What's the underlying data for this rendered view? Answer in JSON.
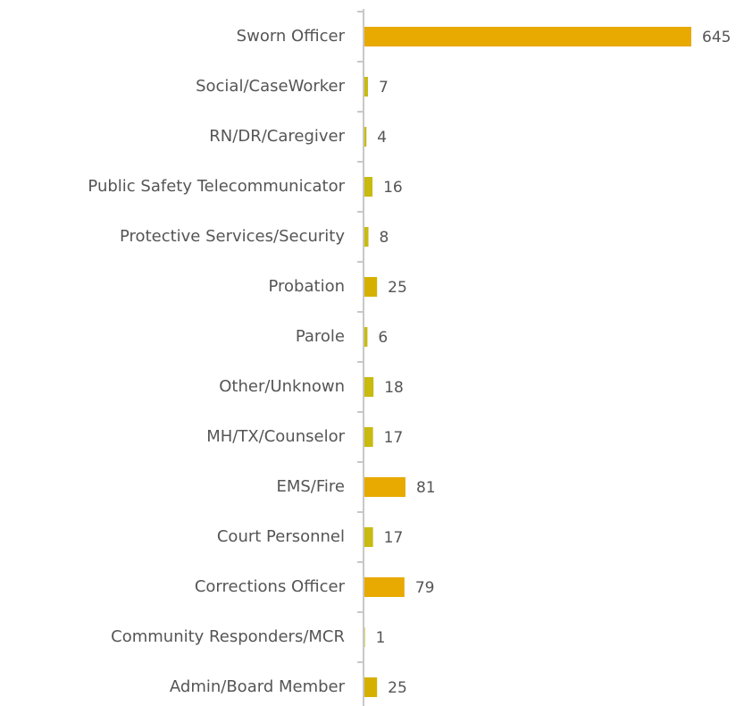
{
  "chart_data": {
    "type": "barh",
    "categories": [
      "Sworn Officer",
      "Social/CaseWorker",
      "RN/DR/Caregiver",
      "Public Safety Telecommunicator",
      "Protective Services/Security",
      "Probation",
      "Parole",
      "Other/Unknown",
      "MH/TX/Counselor",
      "EMS/Fire",
      "Court Personnel",
      "Corrections Officer",
      "Community Responders/MCR",
      "Admin/Board Member"
    ],
    "values": [
      645,
      7,
      4,
      16,
      8,
      25,
      6,
      18,
      17,
      81,
      17,
      79,
      1,
      25
    ],
    "colors": [
      "#e8a900",
      "#c9ba10",
      "#c9ba10",
      "#c9ba10",
      "#c9ba10",
      "#d6b000",
      "#c9ba10",
      "#c9ba10",
      "#c9ba10",
      "#e8a900",
      "#c9ba10",
      "#e8a900",
      "#c9ba10",
      "#d6b000"
    ]
  }
}
